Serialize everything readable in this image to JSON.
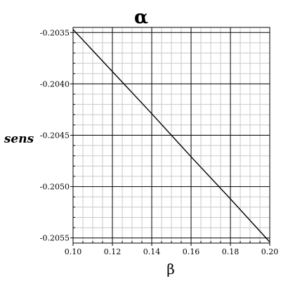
{
  "chart_data": {
    "type": "line",
    "title": "α",
    "xlabel": "β",
    "ylabel": "sens",
    "xlim": [
      0.1,
      0.2
    ],
    "ylim": [
      -0.20555,
      -0.20345
    ],
    "x_ticks": [
      0.1,
      0.12,
      0.14,
      0.16,
      0.18,
      0.2
    ],
    "x_tick_labels": [
      "0.10",
      "0.12",
      "0.14",
      "0.16",
      "0.18",
      "0.20"
    ],
    "y_ticks": [
      -0.2035,
      -0.204,
      -0.2045,
      -0.205,
      -0.2055
    ],
    "y_tick_labels": [
      "-0.2035",
      "-0.2040",
      "-0.2045",
      "-0.2050",
      "-0.2055"
    ],
    "grid": true,
    "series": [
      {
        "color": "#000000",
        "x": [
          0.1,
          0.12,
          0.14,
          0.16,
          0.18,
          0.2
        ],
        "y": [
          -0.20347,
          -0.20388,
          -0.20429,
          -0.20471,
          -0.20512,
          -0.20554
        ]
      }
    ]
  }
}
